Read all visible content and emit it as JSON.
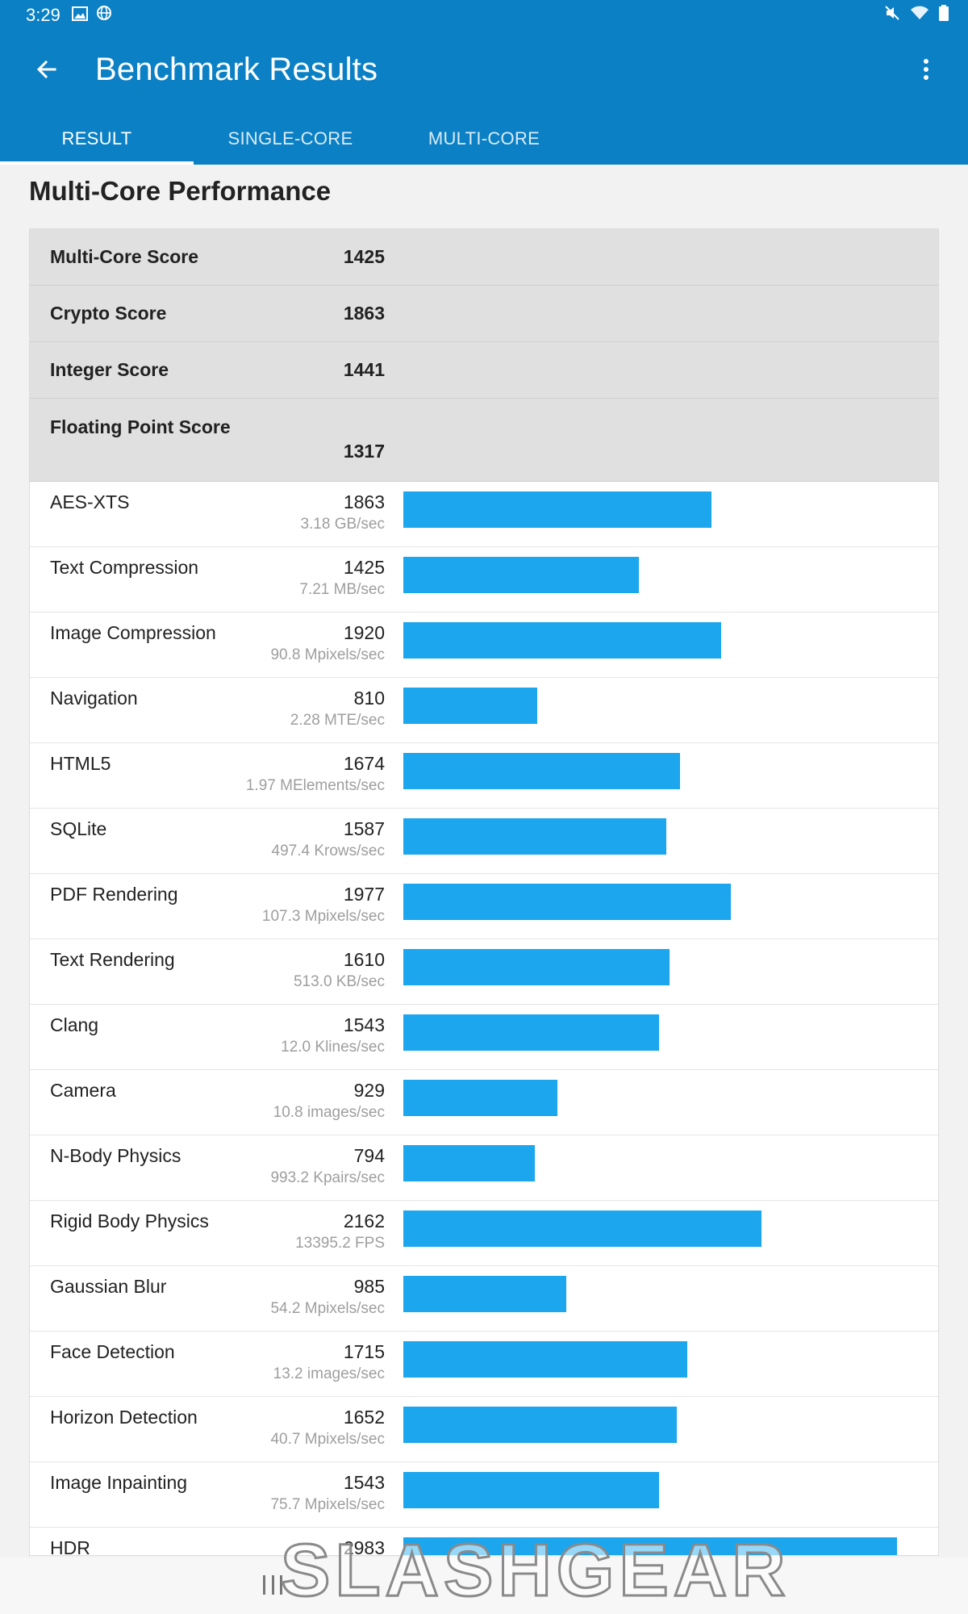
{
  "status": {
    "time": "3:29"
  },
  "toolbar": {
    "title": "Benchmark Results"
  },
  "tabs": [
    {
      "label": "RESULT",
      "active": true
    },
    {
      "label": "SINGLE-CORE",
      "active": false
    },
    {
      "label": "MULTI-CORE",
      "active": false
    }
  ],
  "section": {
    "title": "Multi-Core Performance"
  },
  "summary": [
    {
      "label": "Multi-Core Score",
      "value": "1425"
    },
    {
      "label": "Crypto Score",
      "value": "1863"
    },
    {
      "label": "Integer Score",
      "value": "1441"
    },
    {
      "label": "Floating Point Score",
      "value": "1317"
    }
  ],
  "workloads": [
    {
      "name": "AES-XTS",
      "score": 1863,
      "rate": "3.18 GB/sec"
    },
    {
      "name": "Text Compression",
      "score": 1425,
      "rate": "7.21 MB/sec"
    },
    {
      "name": "Image Compression",
      "score": 1920,
      "rate": "90.8 Mpixels/sec"
    },
    {
      "name": "Navigation",
      "score": 810,
      "rate": "2.28 MTE/sec"
    },
    {
      "name": "HTML5",
      "score": 1674,
      "rate": "1.97 MElements/sec"
    },
    {
      "name": "SQLite",
      "score": 1587,
      "rate": "497.4 Krows/sec"
    },
    {
      "name": "PDF Rendering",
      "score": 1977,
      "rate": "107.3 Mpixels/sec"
    },
    {
      "name": "Text Rendering",
      "score": 1610,
      "rate": "513.0 KB/sec"
    },
    {
      "name": "Clang",
      "score": 1543,
      "rate": "12.0 Klines/sec"
    },
    {
      "name": "Camera",
      "score": 929,
      "rate": "10.8 images/sec"
    },
    {
      "name": "N-Body Physics",
      "score": 794,
      "rate": "993.2 Kpairs/sec"
    },
    {
      "name": "Rigid Body Physics",
      "score": 2162,
      "rate": "13395.2 FPS"
    },
    {
      "name": "Gaussian Blur",
      "score": 985,
      "rate": "54.2 Mpixels/sec"
    },
    {
      "name": "Face Detection",
      "score": 1715,
      "rate": "13.2 images/sec"
    },
    {
      "name": "Horizon Detection",
      "score": 1652,
      "rate": "40.7 Mpixels/sec"
    },
    {
      "name": "Image Inpainting",
      "score": 1543,
      "rate": "75.7 Mpixels/sec"
    },
    {
      "name": "HDR",
      "score": 2983,
      "rate": ""
    }
  ],
  "bar_max_score": 2983,
  "watermark": {
    "text": "SLASHGEAR"
  },
  "colors": {
    "appbar": "#0b80c5",
    "bar": "#1ba6ee"
  },
  "icons": [
    "back-arrow-icon",
    "overflow-menu-icon",
    "image-icon",
    "globe-icon",
    "mute-icon",
    "wifi-icon",
    "battery-icon",
    "recent-apps-icon"
  ]
}
